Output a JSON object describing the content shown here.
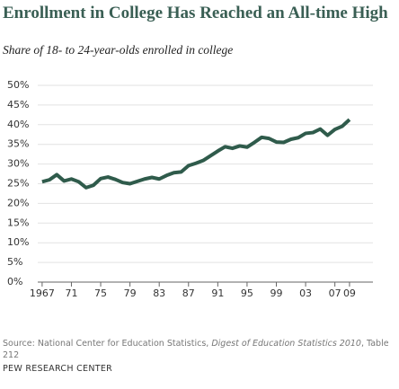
{
  "chart_data": {
    "type": "line",
    "title": "Enrollment in College Has Reached an All-time High",
    "subtitle": "Share of 18- to 24-year-olds enrolled in college",
    "source_prefix": "Source: National Center for Education Statistics,",
    "source_title": "Digest of Education Statistics 2010",
    "source_suffix": ", Table 212",
    "footer": "PEW RESEARCH CENTER",
    "x": [
      1967,
      1968,
      1969,
      1970,
      1971,
      1972,
      1973,
      1974,
      1975,
      1976,
      1977,
      1978,
      1979,
      1980,
      1981,
      1982,
      1983,
      1984,
      1985,
      1986,
      1987,
      1988,
      1989,
      1990,
      1991,
      1992,
      1993,
      1994,
      1995,
      1996,
      1997,
      1998,
      1999,
      2000,
      2001,
      2002,
      2003,
      2004,
      2005,
      2006,
      2007,
      2008,
      2009
    ],
    "series": [
      {
        "color": "#2f5b4b",
        "values": [
          25.5,
          26.0,
          27.3,
          25.7,
          26.2,
          25.5,
          24.0,
          24.6,
          26.3,
          26.7,
          26.1,
          25.3,
          25.0,
          25.6,
          26.2,
          26.6,
          26.2,
          27.1,
          27.8,
          28.0,
          29.6,
          30.2,
          30.9,
          32.1,
          33.3,
          34.4,
          34.0,
          34.6,
          34.3,
          35.5,
          36.8,
          36.5,
          35.6,
          35.5,
          36.3,
          36.7,
          37.8,
          38.0,
          38.9,
          37.3,
          38.8,
          39.6,
          41.3
        ]
      }
    ],
    "xlim": [
      1966.4,
      2012.2
    ],
    "xticks": [
      1967,
      {
        "value": 1971,
        "label": "71"
      },
      {
        "value": 1975,
        "label": "75"
      },
      {
        "value": 1979,
        "label": "79"
      },
      {
        "value": 1983,
        "label": "83"
      },
      {
        "value": 1987,
        "label": "87"
      },
      {
        "value": 1991,
        "label": "91"
      },
      {
        "value": 1995,
        "label": "95"
      },
      {
        "value": 1999,
        "label": "99"
      },
      {
        "value": 2003,
        "label": "03"
      },
      {
        "value": 2007,
        "label": "07"
      },
      {
        "value": 2009,
        "label": "09"
      }
    ],
    "ylim": [
      0,
      50
    ],
    "yticks": [
      {
        "value": 0,
        "label": "0%"
      },
      {
        "value": 5,
        "label": "5%"
      },
      {
        "value": 10,
        "label": "10%"
      },
      {
        "value": 15,
        "label": "15%"
      },
      {
        "value": 20,
        "label": "20%"
      },
      {
        "value": 25,
        "label": "25%"
      },
      {
        "value": 30,
        "label": "30%"
      },
      {
        "value": 35,
        "label": "35%"
      },
      {
        "value": 40,
        "label": "40%"
      },
      {
        "value": 45,
        "label": "45%"
      },
      {
        "value": 50,
        "label": "50%"
      }
    ],
    "grid": true
  }
}
